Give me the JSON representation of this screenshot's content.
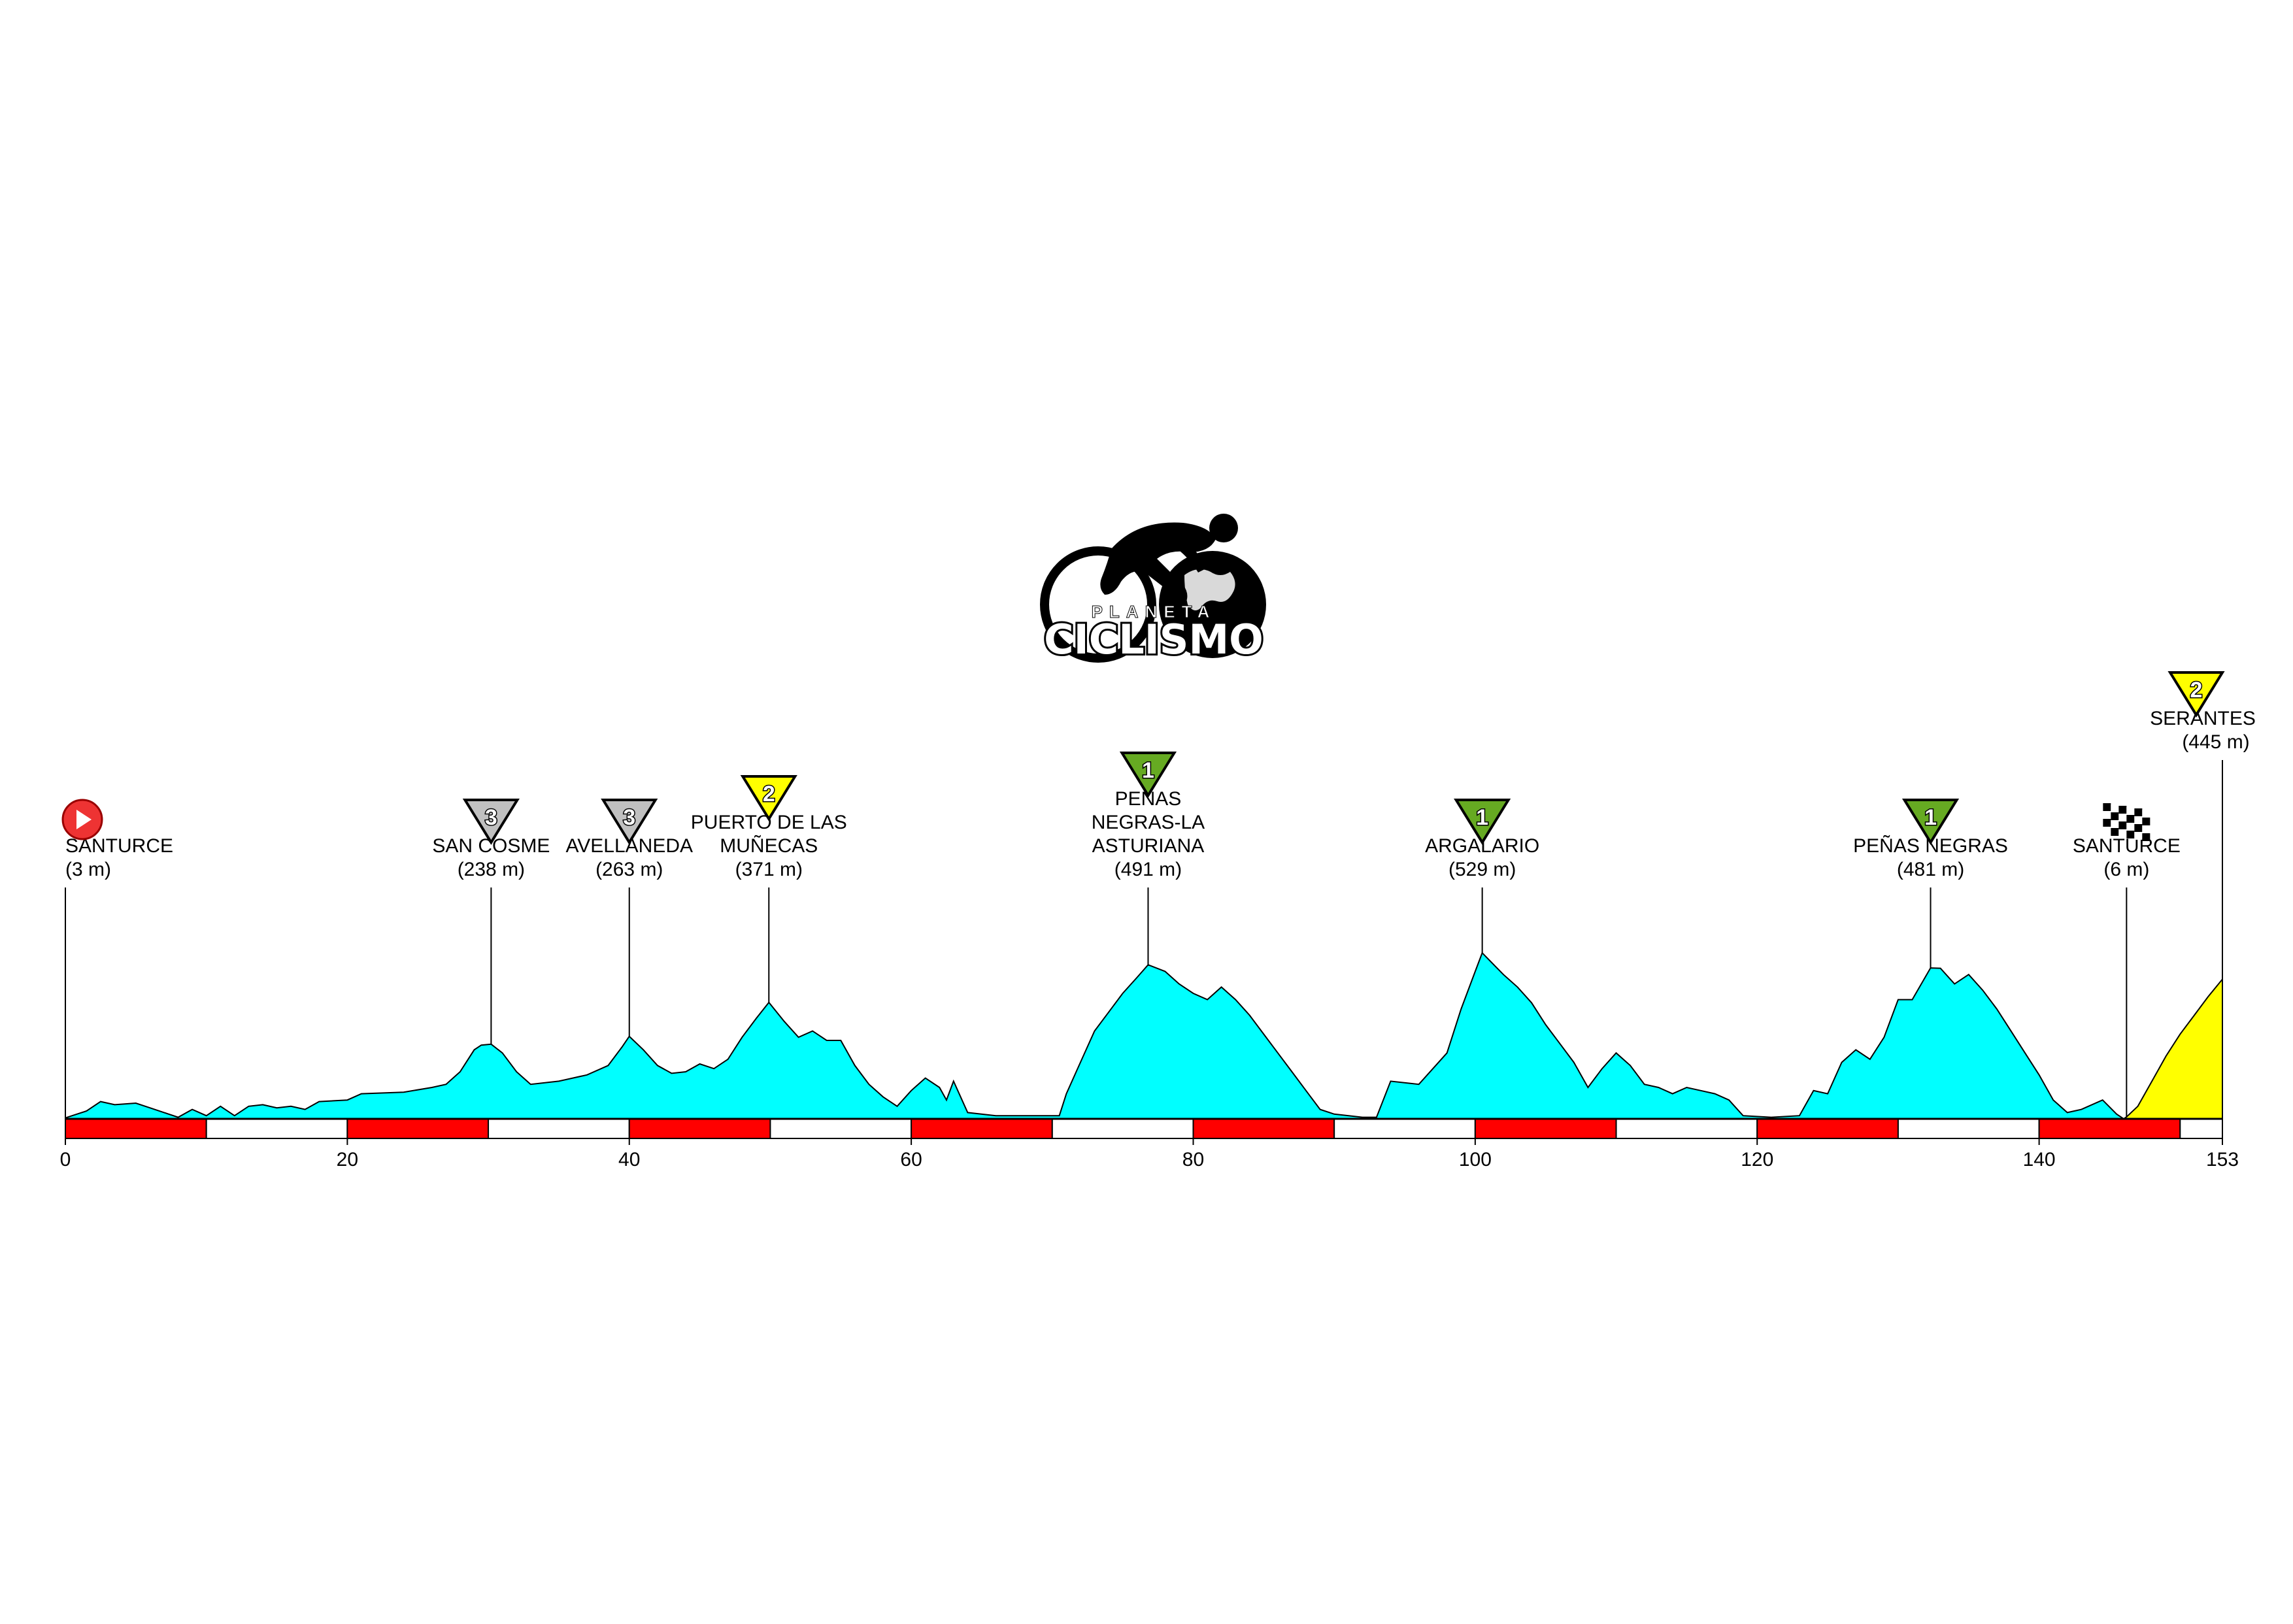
{
  "logo": {
    "text_top": "PLANETA",
    "text_main": "CICLISMO"
  },
  "chart_data": {
    "type": "area",
    "title": "",
    "xlabel": "",
    "ylabel": "",
    "xlim": [
      0,
      153
    ],
    "ylim": [
      0,
      1200
    ],
    "x_ticks": [
      0,
      20,
      40,
      60,
      80,
      100,
      120,
      140,
      153
    ],
    "units": {
      "distance": "km",
      "altitude": "m"
    },
    "profile_color": "#00ffff",
    "final_climb_color": "#ffff00",
    "scale_bar_colors": [
      "#ff0000",
      "#ffffff"
    ],
    "scale_bar_segment_km": 10,
    "final_climb_start_km": 146,
    "profile": [
      [
        0,
        3
      ],
      [
        1.5,
        25
      ],
      [
        2.5,
        55
      ],
      [
        3.5,
        45
      ],
      [
        5,
        50
      ],
      [
        6,
        35
      ],
      [
        7,
        20
      ],
      [
        8,
        5
      ],
      [
        9,
        30
      ],
      [
        10,
        10
      ],
      [
        11,
        40
      ],
      [
        12,
        10
      ],
      [
        13,
        40
      ],
      [
        14,
        45
      ],
      [
        15,
        35
      ],
      [
        16,
        40
      ],
      [
        17,
        30
      ],
      [
        18,
        55
      ],
      [
        20,
        60
      ],
      [
        21,
        80
      ],
      [
        24,
        85
      ],
      [
        26,
        100
      ],
      [
        27,
        110
      ],
      [
        28,
        150
      ],
      [
        29,
        220
      ],
      [
        29.5,
        235
      ],
      [
        30.2,
        238
      ],
      [
        31,
        210
      ],
      [
        32,
        150
      ],
      [
        33,
        110
      ],
      [
        35,
        120
      ],
      [
        37,
        140
      ],
      [
        38.5,
        170
      ],
      [
        39.5,
        230
      ],
      [
        40,
        263
      ],
      [
        41,
        220
      ],
      [
        42,
        170
      ],
      [
        43,
        145
      ],
      [
        44,
        150
      ],
      [
        45,
        175
      ],
      [
        46,
        160
      ],
      [
        47,
        190
      ],
      [
        48,
        260
      ],
      [
        49,
        320
      ],
      [
        49.9,
        371
      ],
      [
        51,
        310
      ],
      [
        52,
        260
      ],
      [
        53,
        280
      ],
      [
        54,
        250
      ],
      [
        55,
        250
      ],
      [
        56,
        170
      ],
      [
        57,
        110
      ],
      [
        58,
        70
      ],
      [
        59,
        40
      ],
      [
        60,
        90
      ],
      [
        61,
        130
      ],
      [
        62,
        100
      ],
      [
        62.5,
        60
      ],
      [
        63,
        120
      ],
      [
        64,
        20
      ],
      [
        66,
        10
      ],
      [
        69,
        10
      ],
      [
        70.5,
        10
      ],
      [
        71,
        80
      ],
      [
        72,
        180
      ],
      [
        73,
        280
      ],
      [
        74,
        340
      ],
      [
        75,
        400
      ],
      [
        76,
        450
      ],
      [
        76.8,
        491
      ],
      [
        78,
        470
      ],
      [
        79,
        430
      ],
      [
        80,
        400
      ],
      [
        81,
        380
      ],
      [
        82,
        420
      ],
      [
        83,
        380
      ],
      [
        84,
        330
      ],
      [
        85,
        270
      ],
      [
        86,
        210
      ],
      [
        87,
        150
      ],
      [
        88,
        90
      ],
      [
        89,
        30
      ],
      [
        90,
        15
      ],
      [
        92,
        5
      ],
      [
        93,
        5
      ],
      [
        94,
        120
      ],
      [
        96,
        110
      ],
      [
        98,
        210
      ],
      [
        99,
        350
      ],
      [
        100,
        470
      ],
      [
        100.5,
        529
      ],
      [
        102,
        460
      ],
      [
        103,
        420
      ],
      [
        104,
        370
      ],
      [
        105,
        300
      ],
      [
        106,
        240
      ],
      [
        107,
        180
      ],
      [
        108,
        100
      ],
      [
        109,
        160
      ],
      [
        110,
        210
      ],
      [
        111,
        170
      ],
      [
        112,
        110
      ],
      [
        113,
        100
      ],
      [
        114,
        80
      ],
      [
        115,
        100
      ],
      [
        116,
        90
      ],
      [
        117,
        80
      ],
      [
        118,
        60
      ],
      [
        119,
        10
      ],
      [
        121,
        5
      ],
      [
        123,
        10
      ],
      [
        124,
        90
      ],
      [
        125,
        80
      ],
      [
        126,
        180
      ],
      [
        127,
        220
      ],
      [
        128,
        190
      ],
      [
        129,
        260
      ],
      [
        130,
        380
      ],
      [
        131,
        380
      ],
      [
        132.3,
        481
      ],
      [
        133,
        480
      ],
      [
        134,
        430
      ],
      [
        135,
        460
      ],
      [
        136,
        410
      ],
      [
        137,
        350
      ],
      [
        138,
        280
      ],
      [
        139,
        210
      ],
      [
        140,
        140
      ],
      [
        141,
        60
      ],
      [
        142,
        20
      ],
      [
        143,
        30
      ],
      [
        144.5,
        60
      ],
      [
        145.5,
        15
      ],
      [
        146.2,
        6
      ],
      [
        147,
        40
      ],
      [
        148,
        120
      ],
      [
        149,
        200
      ],
      [
        150,
        270
      ],
      [
        151,
        330
      ],
      [
        152,
        390
      ],
      [
        153,
        445
      ]
    ],
    "climbs": [
      {
        "km": 0,
        "name": "SANTURCE",
        "alt": "(3 m)",
        "marker": "start"
      },
      {
        "km": 30.2,
        "name": "SAN COSME",
        "alt": "(238 m)",
        "marker": "cat",
        "category": "3",
        "color": "#c0c0c0"
      },
      {
        "km": 40,
        "name": "AVELLANEDA",
        "alt": "(263 m)",
        "marker": "cat",
        "category": "3",
        "color": "#c0c0c0"
      },
      {
        "km": 49.9,
        "name": "PUERTO DE LAS MUÑECAS",
        "alt": "(371 m)",
        "marker": "cat",
        "category": "2",
        "color": "#ffff00"
      },
      {
        "km": 76.8,
        "name": "PEÑAS NEGRAS-LA ASTURIANA",
        "alt": "(491 m)",
        "marker": "cat",
        "category": "1",
        "color": "#66aa22"
      },
      {
        "km": 100.5,
        "name": "ARGALARIO",
        "alt": "(529 m)",
        "marker": "cat",
        "category": "1",
        "color": "#66aa22"
      },
      {
        "km": 132.3,
        "name": "PEÑAS NEGRAS",
        "alt": "(481 m)",
        "marker": "cat",
        "category": "1",
        "color": "#66aa22"
      },
      {
        "km": 146.2,
        "name": "SANTURCE",
        "alt": "(6 m)",
        "marker": "finish"
      },
      {
        "km": 153,
        "name": "SERANTES",
        "alt": "(445 m)",
        "marker": "cat",
        "category": "2",
        "color": "#ffff00"
      }
    ]
  }
}
